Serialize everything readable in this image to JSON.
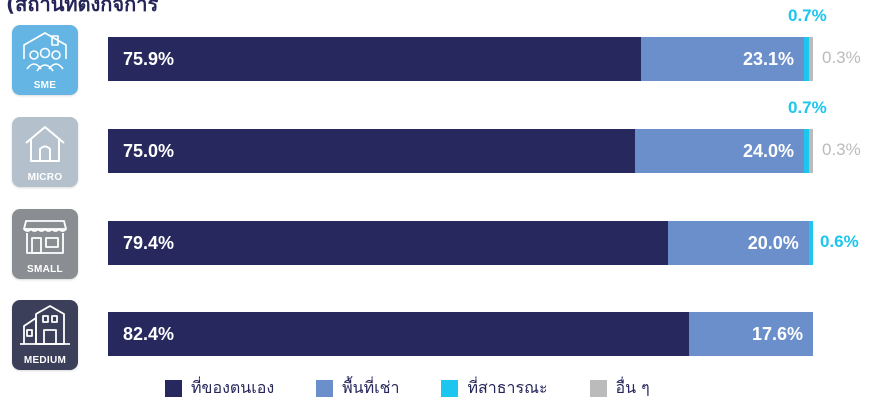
{
  "title": "(สถานที่ตั้งกิจการ",
  "colors": {
    "own": "#27285e",
    "rent": "#6b8fcb",
    "public": "#1cc6ee",
    "other": "#bbbbbb",
    "tile_sme": "#64b5e4",
    "tile_micro": "#b5c0cd",
    "tile_small": "#8a8d91",
    "tile_medium": "#3b3f5a"
  },
  "chart_data": {
    "type": "bar",
    "orientation": "horizontal",
    "stacked": true,
    "title": "(สถานที่ตั้งกิจการ",
    "categories": [
      "SME",
      "MICRO",
      "SMALL",
      "MEDIUM"
    ],
    "series": [
      {
        "name": "ที่ของตนเอง",
        "values": [
          75.9,
          75.0,
          79.4,
          82.4
        ],
        "labels": [
          "75.9%",
          "75.0%",
          "79.4%",
          "82.4%"
        ]
      },
      {
        "name": "พื้นที่เช่า",
        "values": [
          23.1,
          24.0,
          20.0,
          17.6
        ],
        "labels": [
          "23.1%",
          "24.0%",
          "20.0%",
          "17.6%"
        ]
      },
      {
        "name": "ที่สาธารณะ",
        "values": [
          0.7,
          0.7,
          0.6,
          0
        ],
        "labels": [
          "0.7%",
          "0.7%",
          "0.6%",
          ""
        ]
      },
      {
        "name": "อื่น ๆ",
        "values": [
          0.3,
          0.3,
          0,
          0
        ],
        "labels": [
          "0.3%",
          "0.3%",
          "",
          ""
        ]
      }
    ],
    "xlim": [
      0,
      100
    ],
    "legend_position": "bottom",
    "grid": false
  }
}
